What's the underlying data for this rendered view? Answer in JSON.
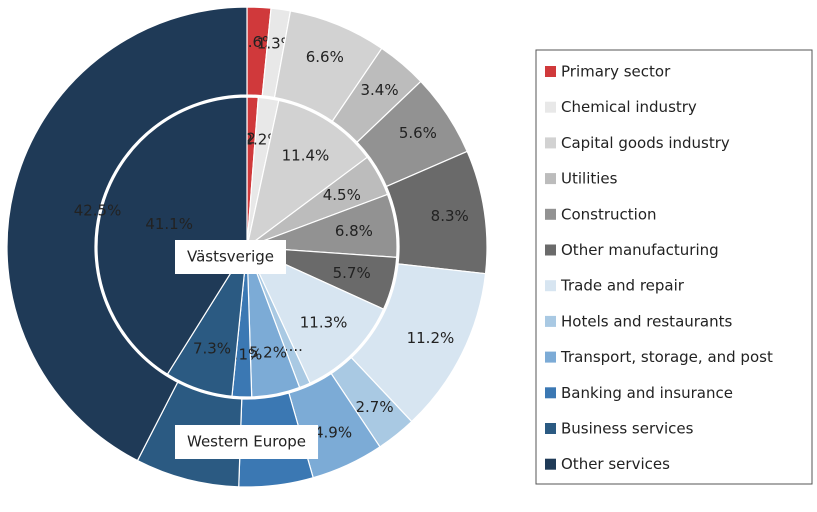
{
  "chart_data": {
    "type": "pie",
    "categories": [
      "Primary sector",
      "Chemical industry",
      "Capital goods industry",
      "Utilities",
      "Construction",
      "Other manufacturing",
      "Trade and repair",
      "Hotels and restaurants",
      "Transport, storage, and post",
      "Banking and insurance",
      "Business services",
      "Other services"
    ],
    "colors": [
      "#d0393b",
      "#e8e8e8",
      "#d2d2d2",
      "#bcbcbc",
      "#929292",
      "#6a6a6a",
      "#d7e5f1",
      "#a9c9e3",
      "#7cabd6",
      "#3b78b3",
      "#2b5a82",
      "#1f3a57"
    ],
    "series": [
      {
        "name": "Västsverige",
        "values": [
          1.2,
          2.2,
          11.4,
          4.5,
          6.8,
          5.7,
          11.3,
          1.2,
          5.2,
          2.1,
          7.3,
          41.1
        ],
        "value_labels": [
          "1.2%",
          "2.2%",
          "11.4%",
          "4.5%",
          "6.8%",
          "5.7%",
          "11.3%",
          "1....",
          "5.2%",
          "2.1%",
          "7.3%",
          "41.1%"
        ]
      },
      {
        "name": "Western Europe",
        "values": [
          1.6,
          1.3,
          6.6,
          3.4,
          5.6,
          8.3,
          11.2,
          2.7,
          4.9,
          5.0,
          7.0,
          42.5
        ],
        "value_labels": [
          "1.6%",
          "1.3%",
          "6.6%",
          "3.4%",
          "5.6%",
          "8.3%",
          "11.2%",
          "2.7%",
          "4.9%",
          "5.0%",
          "7.0%",
          "42.5%"
        ]
      }
    ],
    "legend": "right"
  }
}
